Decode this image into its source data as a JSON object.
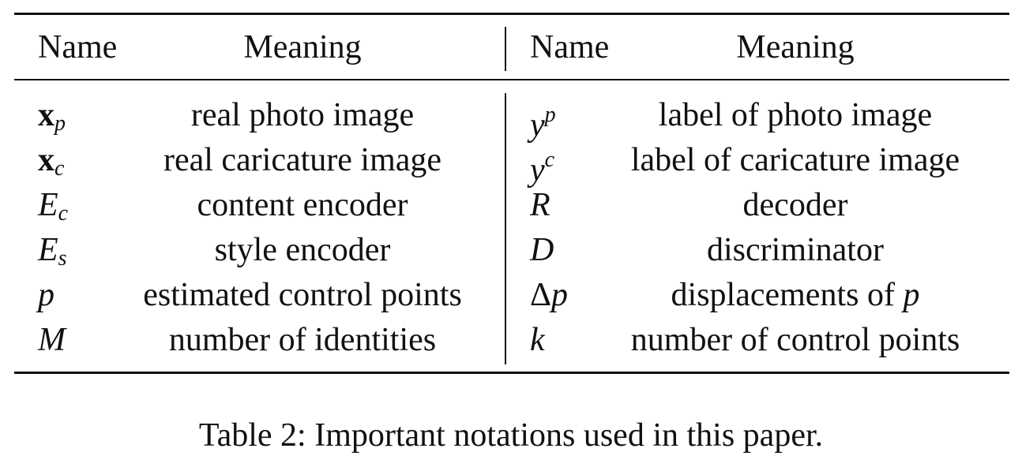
{
  "table": {
    "headers": {
      "left_name": "Name",
      "left_meaning": "Meaning",
      "right_name": "Name",
      "right_meaning": "Meaning"
    },
    "rows": [
      {
        "left_symbol": {
          "base": "x",
          "sub": "p"
        },
        "left_meaning": "real photo image",
        "right_symbol": {
          "base": "y",
          "sup": "p"
        },
        "right_meaning": "label of photo image"
      },
      {
        "left_symbol": {
          "base": "x",
          "sub": "c"
        },
        "left_meaning": "real caricature image",
        "right_symbol": {
          "base": "y",
          "sup": "c"
        },
        "right_meaning": "label of caricature image"
      },
      {
        "left_symbol": {
          "base": "E",
          "sub": "c"
        },
        "left_meaning": "content encoder",
        "right_symbol": {
          "base": "R"
        },
        "right_meaning": "decoder"
      },
      {
        "left_symbol": {
          "base": "E",
          "sub": "s"
        },
        "left_meaning": "style encoder",
        "right_symbol": {
          "base": "D"
        },
        "right_meaning": "discriminator"
      },
      {
        "left_symbol": {
          "base": "p"
        },
        "left_meaning": "estimated control points",
        "right_symbol": {
          "prefix": "Δ",
          "base": "p"
        },
        "right_meaning": "displacements of",
        "right_meaning_symbol": "p"
      },
      {
        "left_symbol": {
          "base": "M"
        },
        "left_meaning": "number of identities",
        "right_symbol": {
          "base": "k"
        },
        "right_meaning": "number of control points"
      }
    ]
  },
  "caption": "Table 2: Important notations used in this paper."
}
